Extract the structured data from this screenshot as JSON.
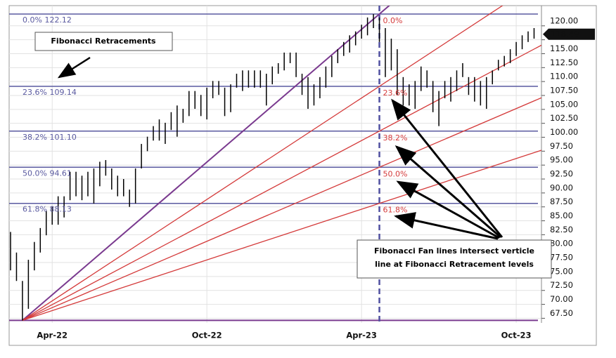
{
  "chart_data": {
    "type": "ohlc",
    "categories": [
      null,
      null,
      null,
      null,
      null,
      null,
      null,
      "Apr-22",
      null,
      null,
      null,
      null,
      null,
      null,
      null,
      null,
      null,
      null,
      null,
      null,
      null,
      null,
      null,
      null,
      null,
      null,
      null,
      null,
      null,
      null,
      null,
      null,
      null,
      "Oct-22",
      null,
      null,
      null,
      null,
      null,
      null,
      null,
      null,
      null,
      null,
      null,
      null,
      null,
      null,
      null,
      null,
      null,
      null,
      null,
      null,
      null,
      null,
      null,
      null,
      null,
      "Apr-23",
      null,
      null,
      null,
      null,
      null,
      null,
      null,
      null,
      null,
      null,
      null,
      null,
      null,
      null,
      null,
      null,
      null,
      null,
      null,
      null,
      null,
      null,
      null,
      null,
      null,
      "Oct-23",
      null,
      null,
      null
    ],
    "series": [
      {
        "name": "high",
        "values": [
          83.0,
          79.3,
          74.2,
          78.0,
          81.2,
          83.7,
          86.8,
          87.5,
          89.4,
          89.4,
          93.8,
          93.8,
          93.1,
          93.8,
          94.4,
          95.6,
          95.9,
          94.4,
          93.1,
          92.5,
          90.6,
          94.4,
          98.8,
          100.1,
          102.0,
          103.2,
          102.6,
          104.5,
          105.7,
          105.1,
          108.3,
          108.3,
          107.6,
          108.9,
          110.1,
          110.1,
          108.9,
          109.5,
          111.4,
          112.0,
          112.0,
          112.0,
          112.0,
          111.4,
          112.7,
          113.3,
          115.2,
          115.2,
          115.2,
          111.4,
          110.8,
          109.5,
          110.8,
          112.7,
          114.6,
          115.8,
          117.1,
          118.3,
          119.0,
          120.2,
          121.5,
          122.1,
          121.5,
          119.6,
          117.7,
          115.8,
          110.8,
          109.5,
          110.1,
          112.7,
          112.0,
          110.1,
          108.3,
          110.1,
          110.8,
          112.0,
          113.3,
          110.8,
          110.8,
          110.1,
          110.8,
          112.0,
          113.9,
          114.6,
          115.8,
          117.1,
          118.3,
          119.0,
          119.6
        ]
      },
      {
        "name": "low",
        "values": [
          76.1,
          74.2,
          67.1,
          69.2,
          76.1,
          79.3,
          82.4,
          84.3,
          84.3,
          85.6,
          88.7,
          89.4,
          88.7,
          89.4,
          88.1,
          91.2,
          93.1,
          90.6,
          89.4,
          89.4,
          87.5,
          88.1,
          94.4,
          97.5,
          99.4,
          99.4,
          98.8,
          101.3,
          100.1,
          102.6,
          103.8,
          105.1,
          103.8,
          103.2,
          107.0,
          107.6,
          103.8,
          104.5,
          108.9,
          108.3,
          108.9,
          108.9,
          108.9,
          105.7,
          109.5,
          111.4,
          112.0,
          113.3,
          110.8,
          107.6,
          105.1,
          105.7,
          107.0,
          108.9,
          110.8,
          113.3,
          114.6,
          115.2,
          116.5,
          117.7,
          118.3,
          119.6,
          117.1,
          110.8,
          112.0,
          107.6,
          105.7,
          105.7,
          105.1,
          108.3,
          108.9,
          104.5,
          102.0,
          107.0,
          106.4,
          108.3,
          110.8,
          107.6,
          106.4,
          105.7,
          105.1,
          109.5,
          112.0,
          112.7,
          113.3,
          114.6,
          115.8,
          117.1,
          117.7
        ]
      }
    ],
    "retracements": [
      {
        "label": "0.0% 122.12",
        "fan_label": "0.0%",
        "value": 122.12
      },
      {
        "label": "23.6% 109.14",
        "fan_label": "23.6%",
        "value": 109.14
      },
      {
        "label": "38.2% 101.10",
        "fan_label": "38.2%",
        "value": 101.1
      },
      {
        "label": "50.0% 94.61",
        "fan_label": "50.0%",
        "value": 94.61
      },
      {
        "label": "61.8% 88.13",
        "fan_label": "61.8%",
        "value": 88.13
      }
    ],
    "low": 67.12,
    "last_price": {
      "value": 118.49,
      "label": "118.49"
    },
    "ylim": [
      66.67,
      123.63
    ],
    "yticks": [
      {
        "value": 67.5,
        "label": "67.50"
      },
      {
        "value": 70,
        "label": "70.00"
      },
      {
        "value": 72.5,
        "label": "72.50"
      },
      {
        "value": 75,
        "label": "75.00"
      },
      {
        "value": 77.5,
        "label": "77.50"
      },
      {
        "value": 80,
        "label": "80.00"
      },
      {
        "value": 82.5,
        "label": "82.50"
      },
      {
        "value": 85,
        "label": "85.00"
      },
      {
        "value": 87.5,
        "label": "87.50"
      },
      {
        "value": 90,
        "label": "90.00"
      },
      {
        "value": 92.5,
        "label": "92.50"
      },
      {
        "value": 95,
        "label": "95.00"
      },
      {
        "value": 97.5,
        "label": "97.50"
      },
      {
        "value": 100,
        "label": "100.00"
      },
      {
        "value": 102.5,
        "label": "102.50"
      },
      {
        "value": 105,
        "label": "105.00"
      },
      {
        "value": 107.5,
        "label": "107.50"
      },
      {
        "value": 110,
        "label": "110.00"
      },
      {
        "value": 112.5,
        "label": "112.50"
      },
      {
        "value": 115,
        "label": "115.00"
      },
      {
        "value": 117.5,
        "label": "117.50"
      },
      {
        "value": 120,
        "label": "120.00"
      }
    ],
    "grid": true,
    "color": "#000000",
    "level_color": "#5a5aa0",
    "fan_color": "#d43a3a",
    "trend_color": "#7a3a8f",
    "annotations": [
      "Fibonacci Retracements",
      "Fibonacci Fan lines intersect verticle",
      "line at Fibonacci Retracement levels"
    ]
  }
}
